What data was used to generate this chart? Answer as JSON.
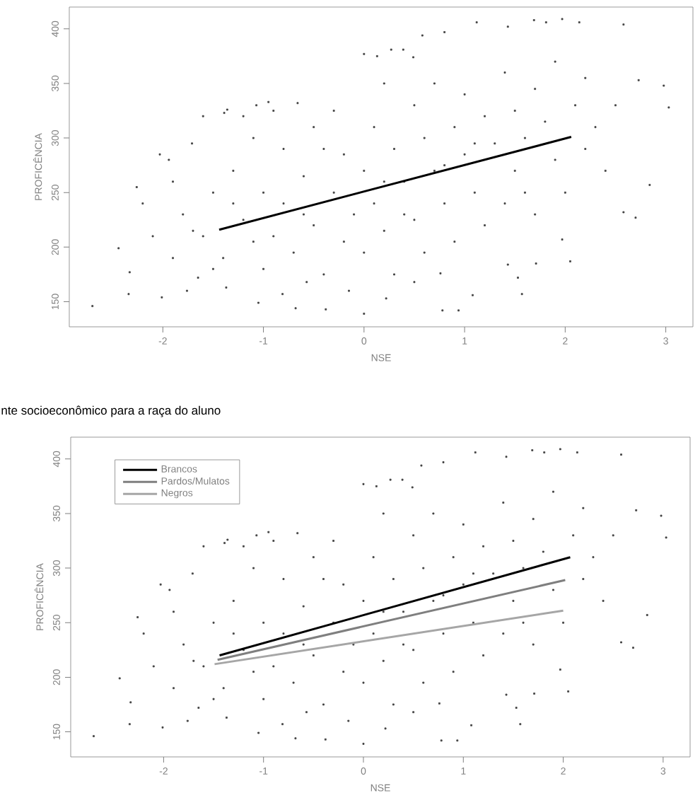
{
  "chart_data": [
    {
      "type": "scatter",
      "xlabel": "NSE",
      "ylabel": "PROFICÊNCIA",
      "xlim": [
        -2.93,
        3.27
      ],
      "ylim": [
        127,
        420
      ],
      "xticks": [
        -2,
        -1,
        0,
        1,
        2,
        3
      ],
      "yticks": [
        150,
        200,
        250,
        300,
        350,
        400
      ],
      "series": [
        {
          "marker": "square",
          "color": "#404040",
          "x": [
            -2.7,
            -2.44,
            -2.33,
            -2.34,
            -2.26,
            -2.03,
            -2.01,
            -1.94,
            -1.76,
            -1.71,
            -1.6,
            -1.39,
            -1.36,
            -1.07,
            -0.95,
            -1.05,
            -0.68,
            -0.66,
            -0.38,
            0.0,
            0.0,
            0.13,
            0.27,
            0.39,
            0.49,
            0.58,
            0.8,
            0.78,
            1.12,
            1.43,
            1.69,
            1.81,
            1.97,
            2.14,
            2.58,
            2.73,
            2.98,
            3.03,
            2.84,
            2.7,
            2.58,
            2.05,
            1.97,
            1.53,
            1.57,
            1.08,
            0.94,
            1.71,
            1.43,
            0.76,
            0.5,
            0.22,
            -0.15,
            -0.57,
            -0.81,
            -1.37,
            -1.65,
            -1.8,
            -1.6,
            -1.5,
            -1.4,
            -1.3,
            -1.2,
            -1.1,
            -1.0,
            -1.0,
            -0.9,
            -0.8,
            -0.8,
            -0.7,
            -0.6,
            -0.5,
            -0.5,
            -0.4,
            -0.3,
            -0.2,
            -0.2,
            -0.1,
            0.0,
            0.0,
            0.1,
            0.1,
            0.2,
            0.3,
            0.3,
            0.4,
            0.5,
            0.5,
            0.6,
            0.6,
            0.7,
            0.7,
            0.8,
            0.9,
            0.9,
            1.0,
            1.0,
            1.1,
            1.2,
            1.2,
            1.3,
            1.4,
            1.4,
            1.5,
            1.5,
            1.6,
            1.7,
            1.7,
            1.8,
            1.9,
            1.9,
            2.0,
            2.1,
            2.2,
            2.3,
            2.4,
            2.5,
            -2.1,
            -2.2,
            -1.9,
            -1.7,
            -1.5,
            -1.2,
            -0.9,
            -0.3,
            0.2,
            0.4,
            -1.1,
            -0.6,
            -0.4,
            0.2,
            0.8,
            1.1,
            1.6,
            2.2,
            -1.9,
            -1.3
          ],
          "values": [
            146,
            199,
            177,
            157,
            255,
            285,
            154,
            280,
            160,
            295,
            320,
            323,
            326,
            330,
            333,
            149,
            144,
            332,
            143,
            139,
            377,
            375,
            381,
            381,
            374,
            394,
            397,
            142,
            406,
            402,
            408,
            406,
            409,
            406,
            404,
            353,
            348,
            328,
            257,
            227,
            232,
            187,
            207,
            172,
            157,
            156,
            142,
            185,
            184,
            176,
            168,
            153,
            160,
            168,
            157,
            163,
            172,
            230,
            210,
            250,
            190,
            270,
            225,
            300,
            180,
            250,
            210,
            290,
            240,
            195,
            265,
            220,
            310,
            175,
            250,
            285,
            205,
            230,
            270,
            195,
            310,
            240,
            215,
            290,
            175,
            260,
            330,
            225,
            300,
            195,
            270,
            350,
            240,
            310,
            205,
            285,
            340,
            250,
            320,
            220,
            295,
            360,
            240,
            325,
            270,
            300,
            345,
            230,
            315,
            280,
            370,
            250,
            330,
            290,
            310,
            270,
            330,
            210,
            240,
            260,
            215,
            180,
            320,
            325,
            325,
            350,
            230,
            205,
            230,
            290,
            260,
            275,
            295,
            250,
            355,
            190,
            240
          ]
        },
        {
          "type": "line",
          "marker": "none",
          "color": "#000000",
          "x": [
            -1.44,
            2.06
          ],
          "values": [
            216,
            301
          ]
        }
      ]
    },
    {
      "type": "scatter",
      "title": "nte socioeconômico para a raça do aluno",
      "xlabel": "NSE",
      "ylabel": "PROFICÊNCIA",
      "xlim": [
        -2.93,
        3.27
      ],
      "ylim": [
        127,
        420
      ],
      "xticks": [
        -2,
        -1,
        0,
        1,
        2,
        3
      ],
      "yticks": [
        150,
        200,
        250,
        300,
        350,
        400
      ],
      "legend": "top left",
      "series": [
        {
          "marker": "square",
          "color": "#404040",
          "x": [
            -2.7,
            -2.44,
            -2.33,
            -2.34,
            -2.26,
            -2.03,
            -2.01,
            -1.94,
            -1.76,
            -1.71,
            -1.6,
            -1.39,
            -1.36,
            -1.07,
            -0.95,
            -1.05,
            -0.68,
            -0.66,
            -0.38,
            0.0,
            0.0,
            0.13,
            0.27,
            0.39,
            0.49,
            0.58,
            0.8,
            0.78,
            1.12,
            1.43,
            1.69,
            1.81,
            1.97,
            2.14,
            2.58,
            2.73,
            2.98,
            3.03,
            2.84,
            2.7,
            2.58,
            2.05,
            1.97,
            1.53,
            1.57,
            1.08,
            0.94,
            1.71,
            1.43,
            0.76,
            0.5,
            0.22,
            -0.15,
            -0.57,
            -0.81,
            -1.37,
            -1.65,
            -1.8,
            -1.6,
            -1.5,
            -1.4,
            -1.3,
            -1.2,
            -1.1,
            -1.0,
            -1.0,
            -0.9,
            -0.8,
            -0.8,
            -0.7,
            -0.6,
            -0.5,
            -0.5,
            -0.4,
            -0.3,
            -0.2,
            -0.2,
            -0.1,
            0.0,
            0.0,
            0.1,
            0.1,
            0.2,
            0.3,
            0.3,
            0.4,
            0.5,
            0.5,
            0.6,
            0.6,
            0.7,
            0.7,
            0.8,
            0.9,
            0.9,
            1.0,
            1.0,
            1.1,
            1.2,
            1.2,
            1.3,
            1.4,
            1.4,
            1.5,
            1.5,
            1.6,
            1.7,
            1.7,
            1.8,
            1.9,
            1.9,
            2.0,
            2.1,
            2.2,
            2.3,
            2.4,
            2.5,
            -2.1,
            -2.2,
            -1.9,
            -1.7,
            -1.5,
            -1.2,
            -0.9,
            -0.3,
            0.2,
            0.4,
            -1.1,
            -0.6,
            -0.4,
            0.2,
            0.8,
            1.1,
            1.6,
            2.2,
            -1.9,
            -1.3
          ],
          "values": [
            146,
            199,
            177,
            157,
            255,
            285,
            154,
            280,
            160,
            295,
            320,
            323,
            326,
            330,
            333,
            149,
            144,
            332,
            143,
            139,
            377,
            375,
            381,
            381,
            374,
            394,
            397,
            142,
            406,
            402,
            408,
            406,
            409,
            406,
            404,
            353,
            348,
            328,
            257,
            227,
            232,
            187,
            207,
            172,
            157,
            156,
            142,
            185,
            184,
            176,
            168,
            153,
            160,
            168,
            157,
            163,
            172,
            230,
            210,
            250,
            190,
            270,
            225,
            300,
            180,
            250,
            210,
            290,
            240,
            195,
            265,
            220,
            310,
            175,
            250,
            285,
            205,
            230,
            270,
            195,
            310,
            240,
            215,
            290,
            175,
            260,
            330,
            225,
            300,
            195,
            270,
            350,
            240,
            310,
            205,
            285,
            340,
            250,
            320,
            220,
            295,
            360,
            240,
            325,
            270,
            300,
            345,
            230,
            315,
            280,
            370,
            250,
            330,
            290,
            310,
            270,
            330,
            210,
            240,
            260,
            215,
            180,
            320,
            325,
            325,
            350,
            230,
            205,
            230,
            290,
            260,
            275,
            295,
            250,
            355,
            190,
            240
          ]
        },
        {
          "type": "line",
          "name": "Brancos",
          "marker": "none",
          "color": "#000000",
          "x": [
            -1.44,
            2.07
          ],
          "values": [
            220,
            310
          ]
        },
        {
          "type": "line",
          "name": "Pardos/Mulatos",
          "marker": "none",
          "color": "#7f7f7f",
          "x": [
            -1.46,
            2.02
          ],
          "values": [
            216,
            289
          ]
        },
        {
          "type": "line",
          "name": "Negros",
          "marker": "none",
          "color": "#a6a6a6",
          "x": [
            -1.49,
            2.0
          ],
          "values": [
            212,
            261
          ]
        }
      ]
    }
  ]
}
